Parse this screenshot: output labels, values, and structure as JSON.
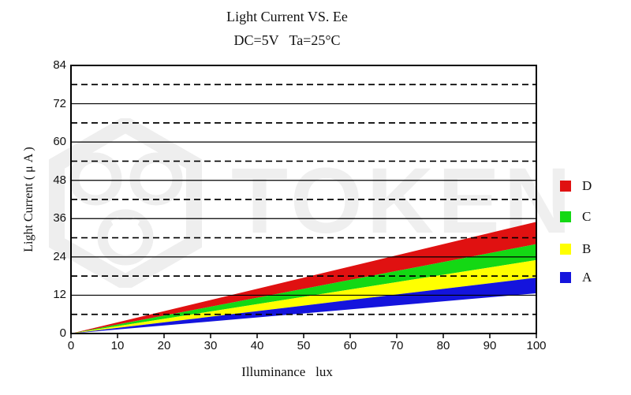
{
  "title": "Light Current VS. Ee",
  "subtitle": "DC=5V   Ta=25°C",
  "watermark": {
    "text": "TOKEN"
  },
  "axes": {
    "ylabel": "Light Current ( μ A )",
    "xlabel": "Illuminance   lux"
  },
  "chart_data": {
    "type": "area",
    "title": "Light Current VS. Ee",
    "subtitle": "DC=5V Ta=25°C",
    "xlabel": "Illuminance (lux)",
    "ylabel": "Light Current (μA)",
    "xlim": [
      0,
      100
    ],
    "ylim": [
      0,
      84
    ],
    "x_ticks": [
      0,
      10,
      20,
      30,
      40,
      50,
      60,
      70,
      80,
      90,
      100
    ],
    "y_ticks": [
      0,
      12,
      24,
      36,
      48,
      60,
      72,
      84
    ],
    "grid_solid": [
      12,
      24,
      36,
      48,
      60,
      72
    ],
    "grid_dashed": [
      6,
      18,
      30,
      42,
      54,
      66,
      78
    ],
    "grid": true,
    "legend_position": "right",
    "series": [
      {
        "name": "D",
        "color": "#e01111",
        "x": [
          0,
          100
        ],
        "upper": [
          0,
          35
        ],
        "lower": [
          0,
          28
        ]
      },
      {
        "name": "C",
        "color": "#14d814",
        "x": [
          0,
          100
        ],
        "upper": [
          0,
          28
        ],
        "lower": [
          0,
          23
        ]
      },
      {
        "name": "B",
        "color": "#ffff00",
        "x": [
          0,
          100
        ],
        "upper": [
          0,
          23
        ],
        "lower": [
          0,
          17.5
        ]
      },
      {
        "name": "A",
        "color": "#1414dd",
        "x": [
          0,
          100
        ],
        "upper": [
          0,
          17.5
        ],
        "lower": [
          0,
          12.6
        ]
      }
    ]
  },
  "legend": {
    "items": [
      {
        "label": "D",
        "color": "#e01111"
      },
      {
        "label": "C",
        "color": "#14d814"
      },
      {
        "label": "B",
        "color": "#ffff00"
      },
      {
        "label": "A",
        "color": "#1414dd"
      }
    ]
  }
}
